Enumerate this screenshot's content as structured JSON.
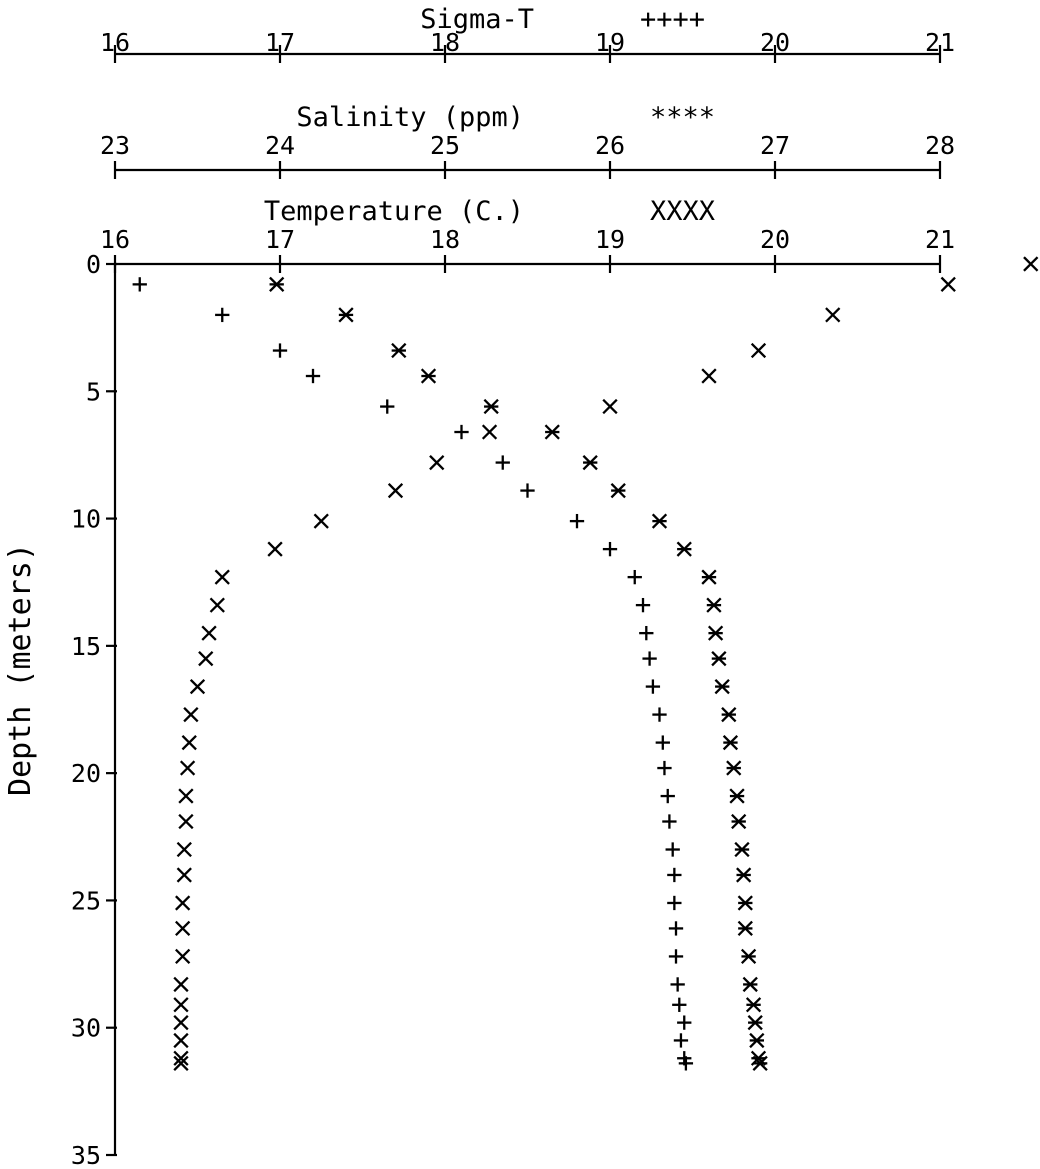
{
  "chart_data": {
    "type": "scatter",
    "ylabel": "Depth (meters)",
    "y_ticks": [
      0,
      5,
      10,
      15,
      20,
      25,
      30,
      35
    ],
    "ylim": [
      0,
      35
    ],
    "y_inverted": true,
    "x_axes": [
      {
        "id": "sigma",
        "title": "Sigma-T",
        "legend": "++++",
        "marker": "plus",
        "ticks": [
          16,
          17,
          18,
          19,
          20,
          21
        ],
        "range": [
          16,
          21
        ]
      },
      {
        "id": "salinity",
        "title": "Salinity (ppm)",
        "legend": "****",
        "marker": "asterisk",
        "ticks": [
          23,
          24,
          25,
          26,
          27,
          28
        ],
        "range": [
          23,
          28
        ]
      },
      {
        "id": "temperature",
        "title": "Temperature (C.)",
        "legend": "XXXX",
        "marker": "x",
        "ticks": [
          16,
          17,
          18,
          19,
          20,
          21
        ],
        "range": [
          16,
          21
        ]
      }
    ],
    "series": [
      {
        "axis": "sigma",
        "marker": "plus",
        "points": [
          [
            16.15,
            0.8
          ],
          [
            16.65,
            2.0
          ],
          [
            17.0,
            3.4
          ],
          [
            17.2,
            4.4
          ],
          [
            17.65,
            5.6
          ],
          [
            18.1,
            6.6
          ],
          [
            18.35,
            7.8
          ],
          [
            18.5,
            8.9
          ],
          [
            18.8,
            10.1
          ],
          [
            19.0,
            11.2
          ],
          [
            19.15,
            12.3
          ],
          [
            19.2,
            13.4
          ],
          [
            19.22,
            14.5
          ],
          [
            19.24,
            15.5
          ],
          [
            19.26,
            16.6
          ],
          [
            19.3,
            17.7
          ],
          [
            19.32,
            18.8
          ],
          [
            19.33,
            19.8
          ],
          [
            19.35,
            20.9
          ],
          [
            19.36,
            21.9
          ],
          [
            19.38,
            23.0
          ],
          [
            19.39,
            24.0
          ],
          [
            19.39,
            25.1
          ],
          [
            19.4,
            26.1
          ],
          [
            19.4,
            27.2
          ],
          [
            19.41,
            28.3
          ],
          [
            19.42,
            29.1
          ],
          [
            19.45,
            29.8
          ],
          [
            19.43,
            30.5
          ],
          [
            19.45,
            31.2
          ],
          [
            19.46,
            31.4
          ]
        ]
      },
      {
        "axis": "salinity",
        "marker": "asterisk",
        "points": [
          [
            23.98,
            0.8
          ],
          [
            24.4,
            2.0
          ],
          [
            24.72,
            3.4
          ],
          [
            24.9,
            4.4
          ],
          [
            25.28,
            5.6
          ],
          [
            25.65,
            6.6
          ],
          [
            25.88,
            7.8
          ],
          [
            26.05,
            8.9
          ],
          [
            26.3,
            10.1
          ],
          [
            26.45,
            11.2
          ],
          [
            26.6,
            12.3
          ],
          [
            26.63,
            13.4
          ],
          [
            26.64,
            14.5
          ],
          [
            26.66,
            15.5
          ],
          [
            26.68,
            16.6
          ],
          [
            26.72,
            17.7
          ],
          [
            26.73,
            18.8
          ],
          [
            26.75,
            19.8
          ],
          [
            26.77,
            20.9
          ],
          [
            26.78,
            21.9
          ],
          [
            26.8,
            23.0
          ],
          [
            26.81,
            24.0
          ],
          [
            26.82,
            25.1
          ],
          [
            26.82,
            26.1
          ],
          [
            26.84,
            27.2
          ],
          [
            26.85,
            28.3
          ],
          [
            26.87,
            29.1
          ],
          [
            26.88,
            29.8
          ],
          [
            26.89,
            30.5
          ],
          [
            26.9,
            31.2
          ],
          [
            26.91,
            31.4
          ]
        ]
      },
      {
        "axis": "temperature",
        "marker": "x",
        "points": [
          [
            21.55,
            0.0
          ],
          [
            21.05,
            0.8
          ],
          [
            20.35,
            2.0
          ],
          [
            19.9,
            3.4
          ],
          [
            19.6,
            4.4
          ],
          [
            19.0,
            5.6
          ],
          [
            18.27,
            6.6
          ],
          [
            17.95,
            7.8
          ],
          [
            17.7,
            8.9
          ],
          [
            17.25,
            10.1
          ],
          [
            16.97,
            11.2
          ],
          [
            16.65,
            12.3
          ],
          [
            16.62,
            13.4
          ],
          [
            16.57,
            14.5
          ],
          [
            16.55,
            15.5
          ],
          [
            16.5,
            16.6
          ],
          [
            16.46,
            17.7
          ],
          [
            16.45,
            18.8
          ],
          [
            16.44,
            19.8
          ],
          [
            16.43,
            20.9
          ],
          [
            16.43,
            21.9
          ],
          [
            16.42,
            23.0
          ],
          [
            16.42,
            24.0
          ],
          [
            16.41,
            25.1
          ],
          [
            16.41,
            26.1
          ],
          [
            16.41,
            27.2
          ],
          [
            16.4,
            28.3
          ],
          [
            16.4,
            29.1
          ],
          [
            16.4,
            29.8
          ],
          [
            16.4,
            30.5
          ],
          [
            16.4,
            31.2
          ],
          [
            16.4,
            31.4
          ]
        ]
      }
    ]
  }
}
